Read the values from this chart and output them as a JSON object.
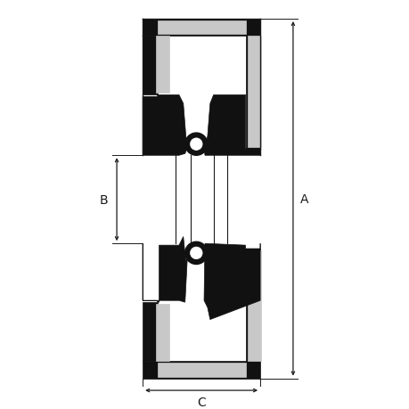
{
  "bg_color": "#ffffff",
  "line_color": "#1a1a1a",
  "fill_black": "#111111",
  "fill_gray": "#c8c8c8",
  "fill_white": "#ffffff",
  "fig_w": 4.6,
  "fig_h": 4.6,
  "dpi": 100,
  "lA": "A",
  "lB": "B",
  "lC": "C"
}
